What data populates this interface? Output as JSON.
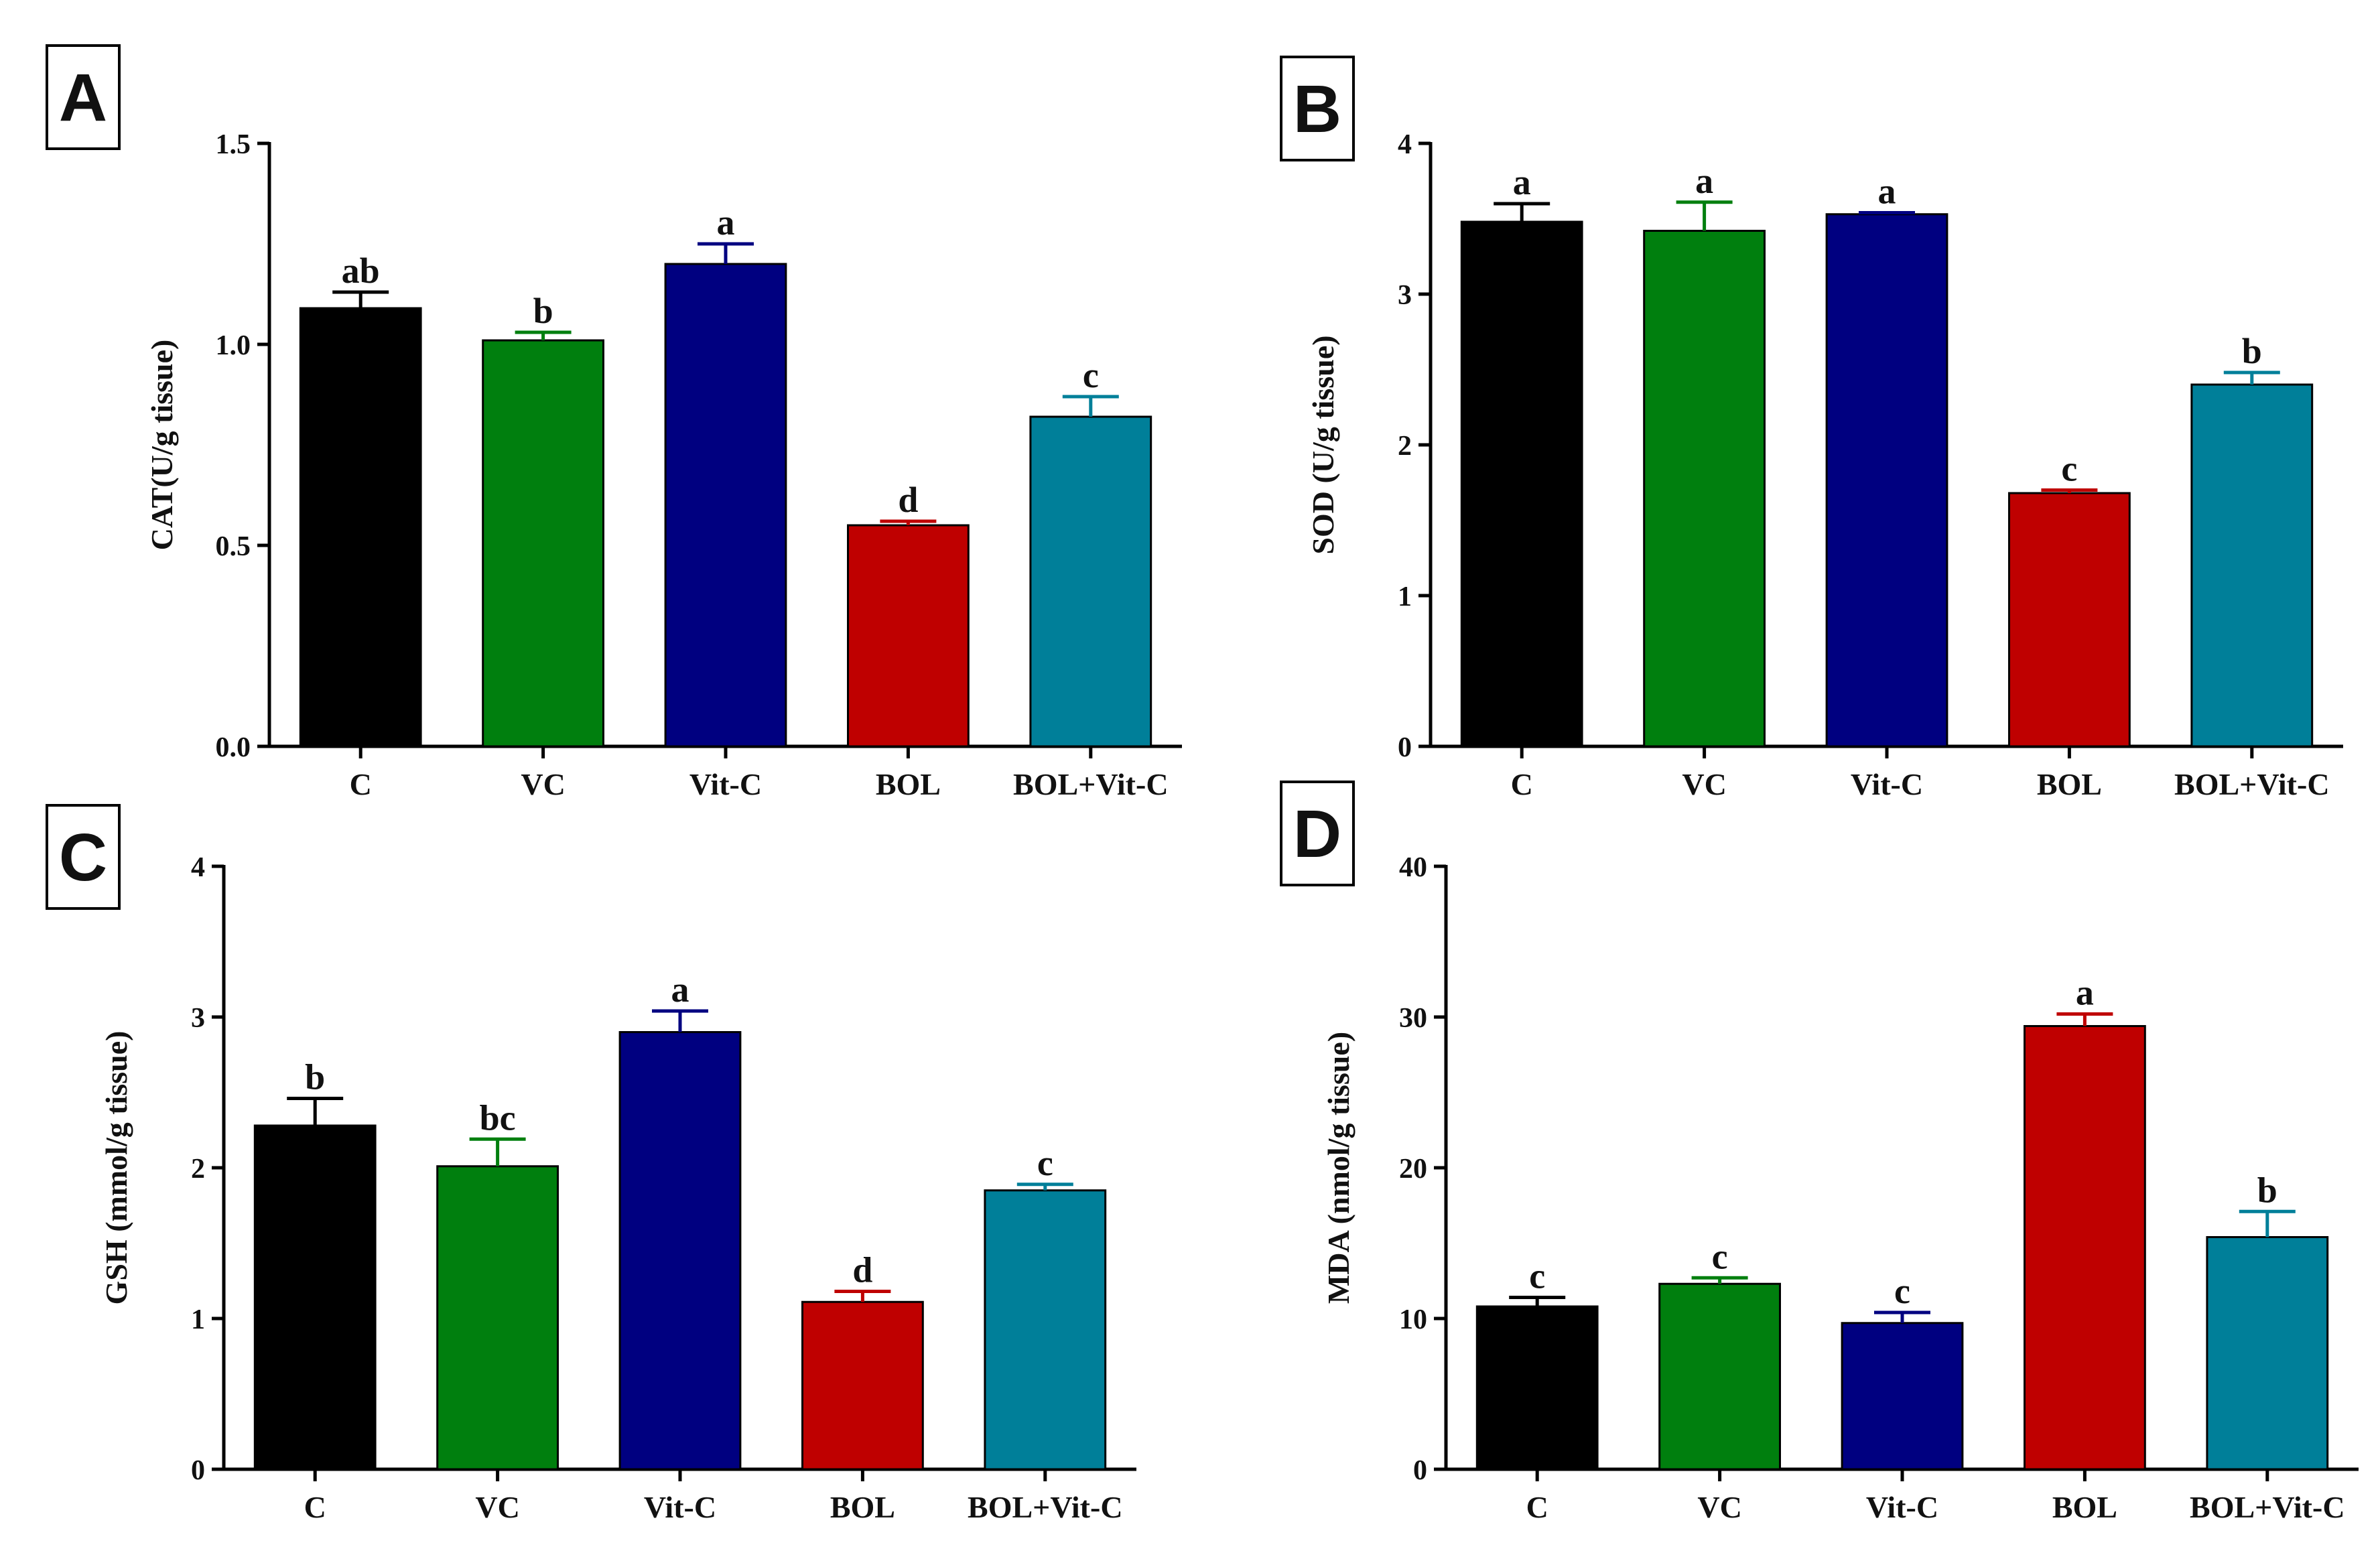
{
  "figure": {
    "panels": [
      "A",
      "B",
      "C",
      "D"
    ]
  },
  "chart_data": [
    {
      "panel": "A",
      "type": "bar",
      "title": "",
      "xlabel": "",
      "ylabel": "CAT(U/g tissue)",
      "ylim": [
        0,
        1.5
      ],
      "yticks": [
        0,
        0.5,
        1.0,
        1.5
      ],
      "ytick_labels": [
        "0.0",
        "0.5",
        "1.0",
        "1.5"
      ],
      "categories": [
        "C",
        "VC",
        "Vit-C",
        "BOL",
        "BOL+Vit-C"
      ],
      "values": [
        1.09,
        1.01,
        1.2,
        0.55,
        0.82
      ],
      "errors": [
        0.04,
        0.02,
        0.05,
        0.01,
        0.05
      ],
      "significance_letters": [
        "ab",
        "b",
        "a",
        "d",
        "c"
      ],
      "colors": [
        "#000000",
        "#007f0e",
        "#000080",
        "#bf0000",
        "#007f99"
      ],
      "grid": false
    },
    {
      "panel": "B",
      "type": "bar",
      "title": "",
      "xlabel": "",
      "ylabel": "SOD (U/g tissue)",
      "ylim": [
        0,
        4
      ],
      "yticks": [
        0,
        1,
        2,
        3,
        4
      ],
      "ytick_labels": [
        "0",
        "1",
        "2",
        "3",
        "4"
      ],
      "categories": [
        "C",
        "VC",
        "Vit-C",
        "BOL",
        "BOL+Vit-C"
      ],
      "values": [
        3.48,
        3.42,
        3.53,
        1.68,
        2.4
      ],
      "errors": [
        0.12,
        0.19,
        0.01,
        0.02,
        0.08
      ],
      "significance_letters": [
        "a",
        "a",
        "a",
        "c",
        "b"
      ],
      "colors": [
        "#000000",
        "#007f0e",
        "#000080",
        "#bf0000",
        "#007f99"
      ],
      "grid": false
    },
    {
      "panel": "C",
      "type": "bar",
      "title": "",
      "xlabel": "",
      "ylabel": "GSH (mmol/g tissue)",
      "ylim": [
        0,
        4
      ],
      "yticks": [
        0,
        1,
        2,
        3,
        4
      ],
      "ytick_labels": [
        "0",
        "1",
        "2",
        "3",
        "4"
      ],
      "categories": [
        "C",
        "VC",
        "Vit-C",
        "BOL",
        "BOL+Vit-C"
      ],
      "values": [
        2.28,
        2.01,
        2.9,
        1.11,
        1.85
      ],
      "errors": [
        0.18,
        0.18,
        0.14,
        0.07,
        0.04
      ],
      "significance_letters": [
        "b",
        "bc",
        "a",
        "d",
        "c"
      ],
      "colors": [
        "#000000",
        "#007f0e",
        "#000080",
        "#bf0000",
        "#007f99"
      ],
      "grid": false
    },
    {
      "panel": "D",
      "type": "bar",
      "title": "",
      "xlabel": "",
      "ylabel": "MDA (nmol/g tissue)",
      "ylim": [
        0,
        40
      ],
      "yticks": [
        0,
        10,
        20,
        30,
        40
      ],
      "ytick_labels": [
        "0",
        "10",
        "20",
        "30",
        "40"
      ],
      "categories": [
        "C",
        "VC",
        "Vit-C",
        "BOL",
        "BOL+Vit-C"
      ],
      "values": [
        10.8,
        12.3,
        9.7,
        29.4,
        15.4
      ],
      "errors": [
        0.6,
        0.4,
        0.7,
        0.8,
        1.7
      ],
      "significance_letters": [
        "c",
        "c",
        "c",
        "a",
        "b"
      ],
      "colors": [
        "#000000",
        "#007f0e",
        "#000080",
        "#bf0000",
        "#007f99"
      ],
      "grid": false
    }
  ]
}
